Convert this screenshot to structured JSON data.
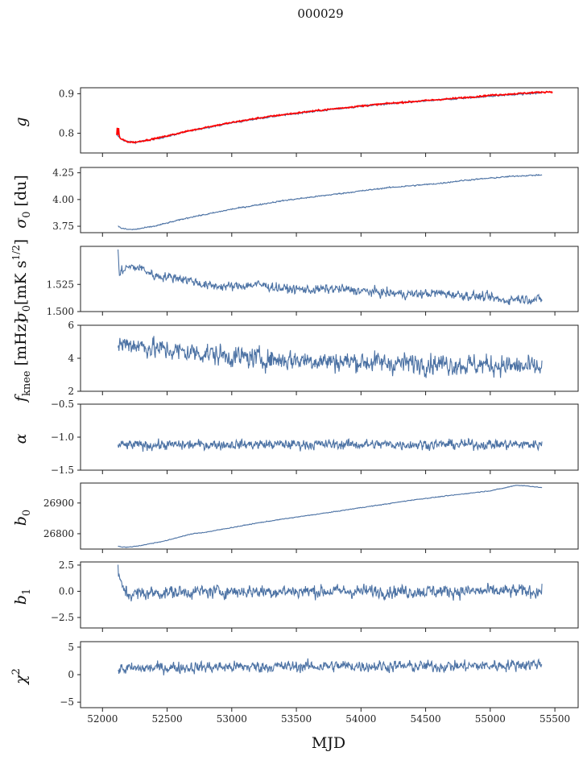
{
  "figure": {
    "title": "000029",
    "xlabel": "MJD",
    "x_ticks": [
      52000,
      52500,
      53000,
      53500,
      54000,
      54500,
      55000,
      55500
    ],
    "xlim": [
      51830,
      55680
    ]
  },
  "colors": {
    "line": "#4c72a4",
    "overlay": "#ff0000"
  },
  "chart_data": [
    {
      "type": "line",
      "ylabel": "g",
      "ylim": [
        0.75,
        0.915
      ],
      "yticks": [
        0.8,
        0.9
      ],
      "ytick_labels": [
        "0.8",
        "0.9"
      ],
      "series": [
        {
          "color": "#4c72a4",
          "x": [
            52110,
            52150,
            52200,
            52250,
            52300,
            52400,
            52500,
            52600,
            52700,
            52800,
            52900,
            53000,
            53200,
            53400,
            53600,
            53800,
            54000,
            54200,
            54400,
            54600,
            54800,
            55000,
            55200,
            55400
          ],
          "y": [
            0.795,
            0.784,
            0.778,
            0.777,
            0.779,
            0.785,
            0.792,
            0.8,
            0.807,
            0.814,
            0.82,
            0.826,
            0.837,
            0.846,
            0.854,
            0.861,
            0.868,
            0.874,
            0.879,
            0.884,
            0.889,
            0.894,
            0.898,
            0.902
          ],
          "noise": 0.0015
        },
        {
          "color": "#ff0000",
          "x": [
            52110,
            52115,
            52120,
            52125,
            52130,
            52150,
            52200,
            52250,
            52300,
            52400,
            52500,
            52600,
            52700,
            52800,
            52900,
            53000,
            53200,
            53400,
            53600,
            53800,
            54000,
            54200,
            54400,
            54600,
            54800,
            55000,
            55200,
            55400,
            55480
          ],
          "y": [
            0.795,
            0.82,
            0.79,
            0.812,
            0.79,
            0.784,
            0.778,
            0.777,
            0.78,
            0.786,
            0.793,
            0.801,
            0.808,
            0.815,
            0.821,
            0.827,
            0.838,
            0.847,
            0.855,
            0.862,
            0.869,
            0.875,
            0.88,
            0.885,
            0.89,
            0.896,
            0.9,
            0.904,
            0.905
          ],
          "noise": 0.0012
        }
      ]
    },
    {
      "type": "line",
      "ylabel": "σ0 [du]",
      "ylim": [
        3.69,
        4.3
      ],
      "yticks": [
        3.75,
        4.0,
        4.25
      ],
      "ytick_labels": [
        "3.75",
        "4.00",
        "4.25"
      ],
      "series": [
        {
          "color": "#4c72a4",
          "x": [
            52120,
            52150,
            52200,
            52250,
            52300,
            52400,
            52500,
            52600,
            52700,
            52800,
            53000,
            53200,
            53400,
            53600,
            53800,
            54000,
            54200,
            54400,
            54600,
            54800,
            55000,
            55200,
            55400
          ],
          "y": [
            3.75,
            3.73,
            3.72,
            3.72,
            3.73,
            3.75,
            3.78,
            3.81,
            3.84,
            3.86,
            3.91,
            3.95,
            3.99,
            4.02,
            4.05,
            4.08,
            4.11,
            4.13,
            4.15,
            4.18,
            4.2,
            4.22,
            4.23
          ],
          "noise": 0.004
        }
      ]
    },
    {
      "type": "line",
      "ylabel": "σ0[mK s^1/2]",
      "ylim": [
        1.5,
        1.56
      ],
      "yticks": [
        1.5,
        1.525
      ],
      "ytick_labels": [
        "1.500",
        "1.525"
      ],
      "series": [
        {
          "color": "#4c72a4",
          "x": [
            52120,
            52130,
            52150,
            52200,
            52300,
            52400,
            52500,
            52600,
            52700,
            52800,
            53000,
            53200,
            53400,
            53600,
            53800,
            54000,
            54200,
            54400,
            54600,
            54800,
            55000,
            55100,
            55200,
            55400
          ],
          "y": [
            1.557,
            1.533,
            1.538,
            1.541,
            1.54,
            1.533,
            1.532,
            1.531,
            1.528,
            1.524,
            1.523,
            1.525,
            1.521,
            1.52,
            1.521,
            1.519,
            1.517,
            1.516,
            1.517,
            1.515,
            1.513,
            1.51,
            1.512,
            1.511
          ],
          "noise": 0.0028
        }
      ]
    },
    {
      "type": "line",
      "ylabel": "fknee [mHz]",
      "ylim": [
        2,
        6
      ],
      "yticks": [
        2,
        4,
        6
      ],
      "ytick_labels": [
        "2",
        "4",
        "6"
      ],
      "series": [
        {
          "color": "#4c72a4",
          "x": [
            52120,
            52200,
            52400,
            52600,
            52800,
            53000,
            53200,
            53400,
            53600,
            53800,
            54000,
            54200,
            54400,
            54600,
            54800,
            55000,
            55200,
            55400
          ],
          "y": [
            4.8,
            4.9,
            4.6,
            4.4,
            4.3,
            4.1,
            4.0,
            3.9,
            3.9,
            3.8,
            3.8,
            3.7,
            3.7,
            3.7,
            3.6,
            3.6,
            3.5,
            3.4
          ],
          "noise": 0.42
        }
      ]
    },
    {
      "type": "line",
      "ylabel": "α",
      "ylim": [
        -1.5,
        -0.5
      ],
      "yticks": [
        -1.5,
        -1.0,
        -0.5
      ],
      "ytick_labels": [
        "−1.5",
        "−1.0",
        "−0.5"
      ],
      "series": [
        {
          "color": "#4c72a4",
          "x": [
            52120,
            52500,
            53000,
            53500,
            54000,
            54500,
            55000,
            55400
          ],
          "y": [
            -1.12,
            -1.12,
            -1.11,
            -1.11,
            -1.11,
            -1.11,
            -1.11,
            -1.11
          ],
          "noise": 0.05
        }
      ]
    },
    {
      "type": "line",
      "ylabel": "b0",
      "ylim": [
        26750,
        26965
      ],
      "yticks": [
        26800,
        26900
      ],
      "ytick_labels": [
        "26800",
        "26900"
      ],
      "series": [
        {
          "color": "#4c72a4",
          "x": [
            52120,
            52150,
            52200,
            52300,
            52400,
            52500,
            52600,
            52700,
            52800,
            53000,
            53200,
            53400,
            53600,
            53800,
            54000,
            54200,
            54400,
            54600,
            54800,
            55000,
            55100,
            55200,
            55300,
            55400
          ],
          "y": [
            26760,
            26757,
            26756,
            26762,
            26770,
            26778,
            26790,
            26800,
            26805,
            26820,
            26835,
            26848,
            26860,
            26872,
            26885,
            26897,
            26910,
            26920,
            26930,
            26940,
            26948,
            26958,
            26955,
            26950
          ],
          "noise": 0.8
        }
      ]
    },
    {
      "type": "line",
      "ylabel": "b1",
      "ylim": [
        -3.5,
        2.8
      ],
      "yticks": [
        -2.5,
        0.0,
        2.5
      ],
      "ytick_labels": [
        "−2.5",
        "0.0",
        "2.5"
      ],
      "series": [
        {
          "color": "#4c72a4",
          "x": [
            52120,
            52130,
            52150,
            52200,
            52300,
            52500,
            53000,
            53500,
            54000,
            54500,
            55000,
            55400
          ],
          "y": [
            2.3,
            1.0,
            0.5,
            -0.3,
            -0.2,
            -0.1,
            0.0,
            0.0,
            0.0,
            0.0,
            0.0,
            0.0
          ],
          "noise": 0.42
        }
      ]
    },
    {
      "type": "line",
      "ylabel": "χ²",
      "ylim": [
        -6,
        6
      ],
      "yticks": [
        -5,
        0,
        5
      ],
      "ytick_labels": [
        "−5",
        "0",
        "5"
      ],
      "series": [
        {
          "color": "#4c72a4",
          "x": [
            52120,
            52500,
            53000,
            53500,
            54000,
            54500,
            55000,
            55400
          ],
          "y": [
            1.0,
            1.3,
            1.4,
            1.5,
            1.6,
            1.5,
            1.6,
            2.0
          ],
          "noise": 0.7
        }
      ]
    }
  ]
}
